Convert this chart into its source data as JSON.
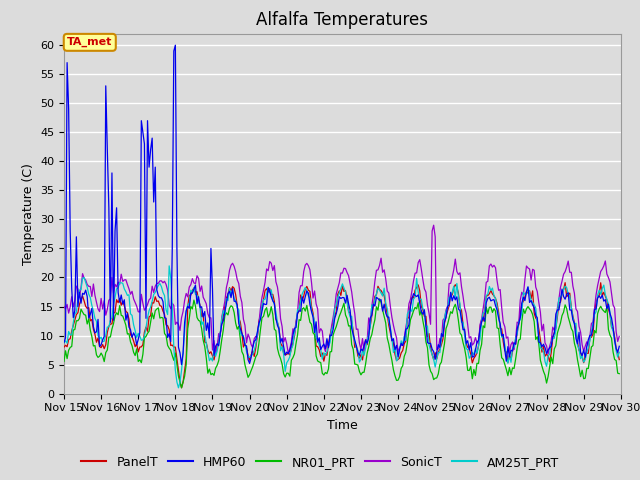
{
  "title": "Alfalfa Temperatures",
  "xlabel": "Time",
  "ylabel": "Temperature (C)",
  "ylim": [
    0,
    62
  ],
  "xlim": [
    0,
    360
  ],
  "fig_width": 6.4,
  "fig_height": 4.8,
  "dpi": 100,
  "background_color": "#dcdcdc",
  "plot_bg_color": "#dcdcdc",
  "grid_color": "#ffffff",
  "annotation_text": "TA_met",
  "annotation_bg": "#ffff99",
  "annotation_border": "#cc8800",
  "annotation_text_color": "#cc0000",
  "colors": {
    "PanelT": "#cc0000",
    "HMP60": "#0000ee",
    "NR01_PRT": "#00bb00",
    "SonicT": "#9900cc",
    "AM25T_PRT": "#00cccc"
  },
  "x_tick_labels": [
    "Nov 15",
    "Nov 16",
    "Nov 17",
    "Nov 18",
    "Nov 19",
    "Nov 20",
    "Nov 21",
    "Nov 22",
    "Nov 23",
    "Nov 24",
    "Nov 25",
    "Nov 26",
    "Nov 27",
    "Nov 28",
    "Nov 29",
    "Nov 30"
  ],
  "x_tick_positions": [
    0,
    24,
    48,
    72,
    96,
    120,
    144,
    168,
    192,
    216,
    240,
    264,
    288,
    312,
    336,
    360
  ],
  "y_ticks": [
    0,
    5,
    10,
    15,
    20,
    25,
    30,
    35,
    40,
    45,
    50,
    55,
    60
  ],
  "title_fontsize": 12,
  "label_fontsize": 9,
  "tick_fontsize": 8,
  "legend_fontsize": 9
}
